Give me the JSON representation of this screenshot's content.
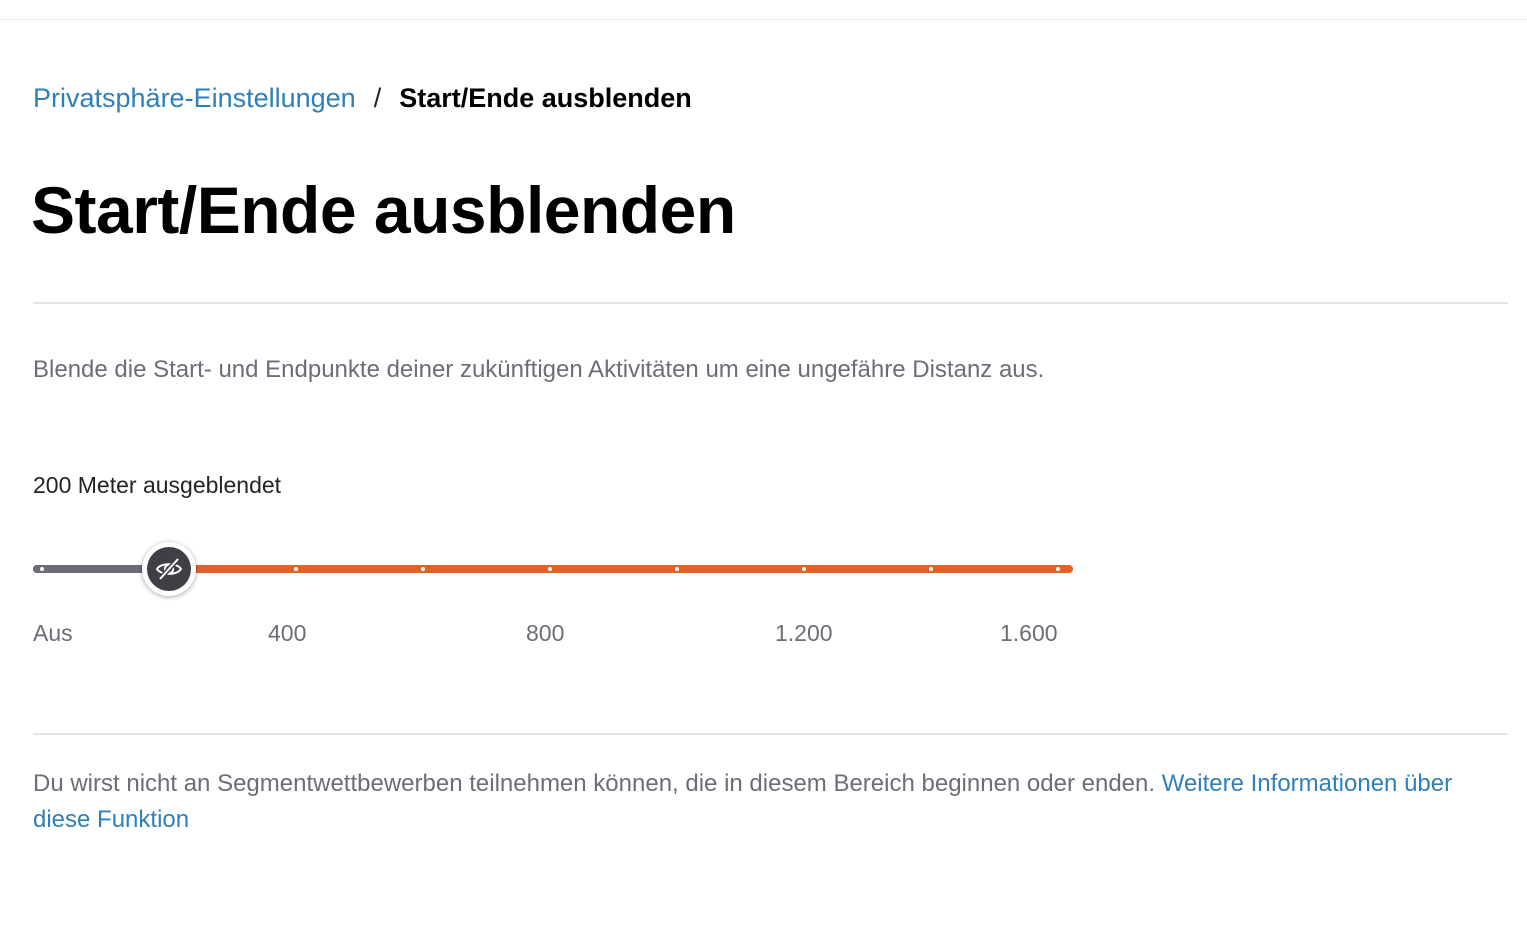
{
  "breadcrumb": {
    "parent": "Privatsphäre-Einstellungen",
    "separator": "/",
    "current": "Start/Ende ausblenden"
  },
  "page_title": "Start/Ende ausblenden",
  "description": "Blende die Start- und Endpunkte deiner zukünftigen Aktivitäten um eine ungefähre Distanz aus.",
  "slider": {
    "value_label": "200 Meter ausgeblendet",
    "value": 200,
    "min": 0,
    "max": 1600,
    "step": 200,
    "scale_labels": [
      "Aus",
      "400",
      "800",
      "1.200",
      "1.600"
    ],
    "thumb_icon": "eye-slash-icon"
  },
  "footnote": {
    "text": "Du wirst nicht an Segmentwettbewerben teilnehmen können, die in diesem Bereich beginnen oder enden.",
    "link": "Weitere Informationen über diese Funktion"
  },
  "colors": {
    "accent": "#e0622b",
    "link": "#2f7fb8",
    "muted_text": "#6d6d78",
    "track_inactive": "#6d6d78",
    "thumb": "#3f3f45"
  }
}
